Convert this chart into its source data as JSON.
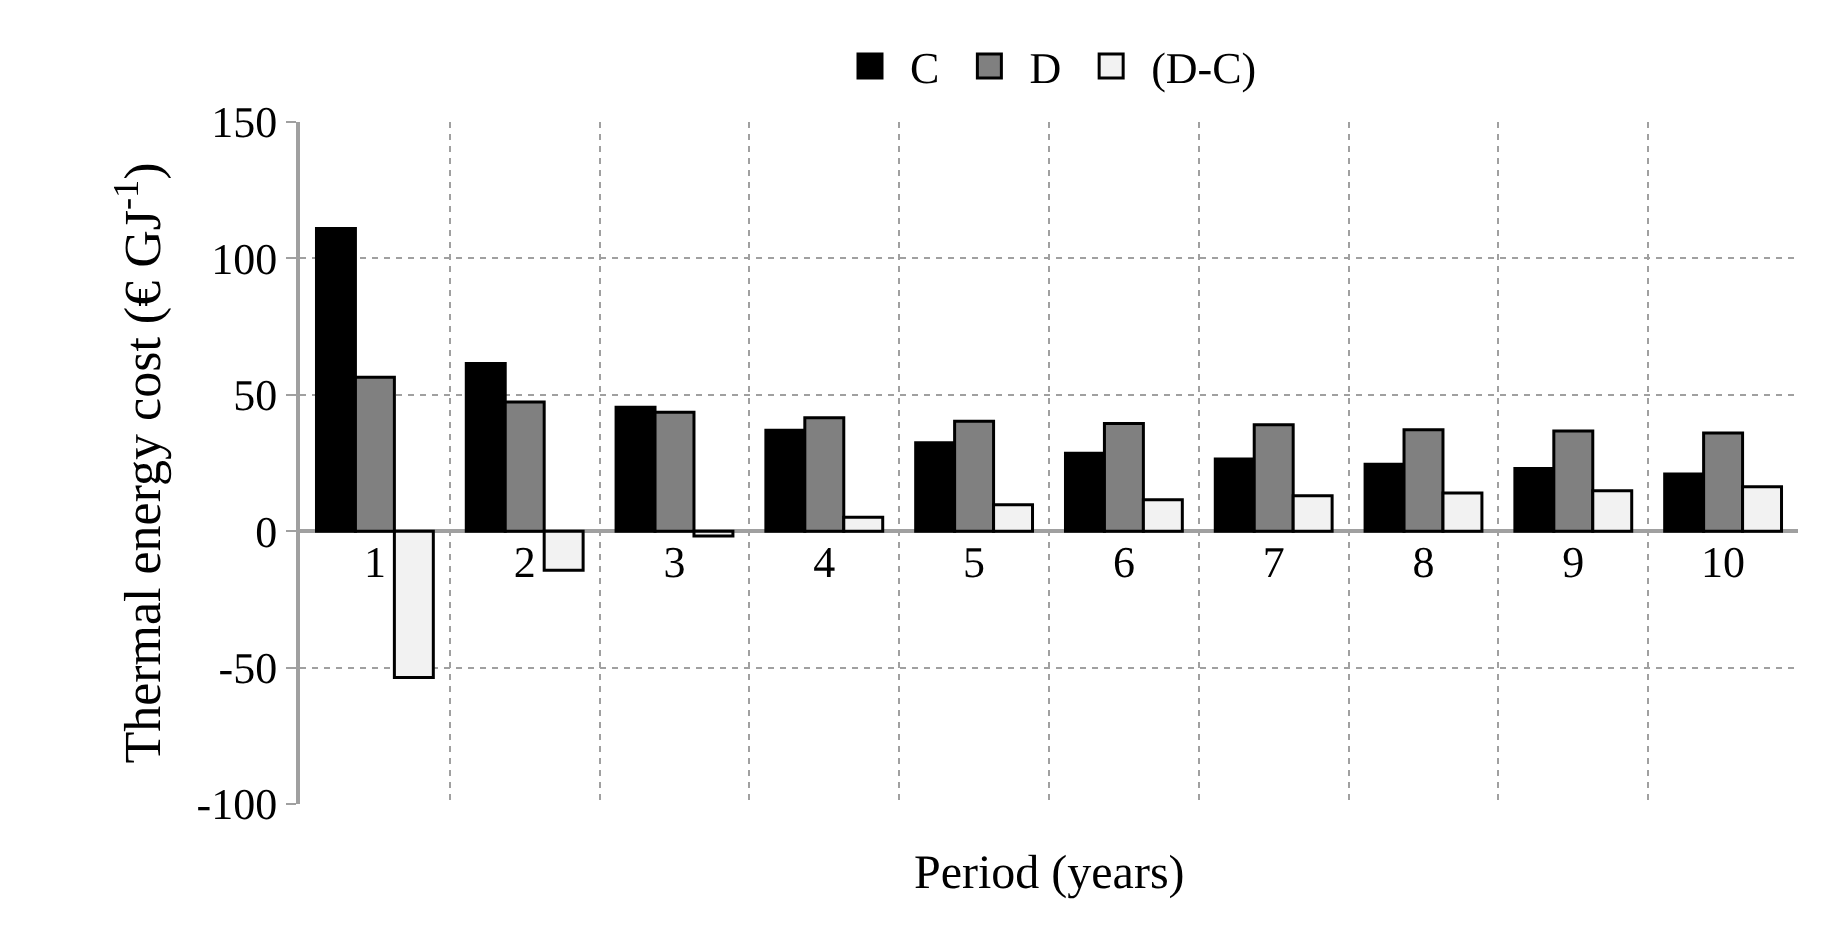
{
  "chart_data": {
    "type": "bar",
    "xlabel": "Period (years)",
    "ylabel": "Thermal energy cost (€ GJ$^{-1}$)",
    "categories": [
      "1",
      "2",
      "3",
      "4",
      "5",
      "6",
      "7",
      "8",
      "9",
      "10"
    ],
    "series": [
      {
        "name": "C",
        "color": "#000000",
        "values": [
          111,
          61.5,
          45.4,
          37,
          32.4,
          28.6,
          26.5,
          24.5,
          23,
          21
        ]
      },
      {
        "name": "D",
        "color": "#808080",
        "values": [
          56.4,
          47.4,
          43.6,
          41.6,
          40.3,
          39.5,
          39,
          37.2,
          36.7,
          36
        ]
      },
      {
        "name": "(D-C)",
        "color": "#f2f2f2",
        "values": [
          -53.6,
          -14.3,
          -1.8,
          5.1,
          9.7,
          11.5,
          13,
          14,
          14.8,
          16.3
        ]
      }
    ],
    "ylim": [
      -100,
      150
    ],
    "yticks": [
      -100,
      -50,
      0,
      50,
      100,
      150
    ],
    "grid": true,
    "legend": "top"
  }
}
